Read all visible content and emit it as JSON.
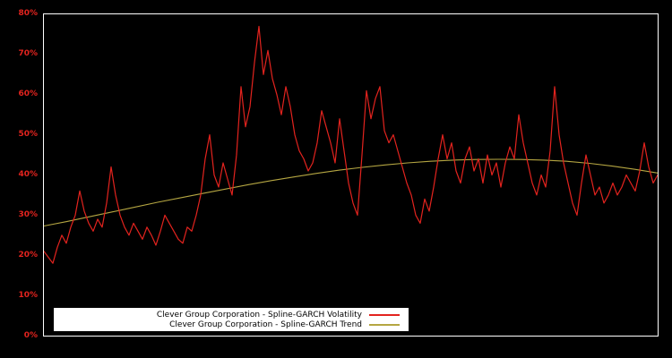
{
  "figure": {
    "background": "#000000",
    "frame_color": "#ffffff"
  },
  "axis": {
    "label_color": "#e3231e"
  },
  "chart_data": {
    "type": "line",
    "title": "",
    "xlabel": "",
    "ylabel": "",
    "ylim": [
      0,
      80
    ],
    "ytick_labels": [
      "0%",
      "10%",
      "20%",
      "30%",
      "40%",
      "50%",
      "60%",
      "70%",
      "80%"
    ],
    "xtick_labels": [],
    "grid": false,
    "legend_position": "bottom-center",
    "plot_background": "#000000",
    "series": [
      {
        "name": "Clever Group Corporation - Spline-GARCH Volatility",
        "color": "#e3231e",
        "values": [
          21,
          19.5,
          18,
          22,
          25,
          23,
          27,
          30,
          36,
          31,
          28,
          26,
          29,
          27,
          33,
          42,
          35,
          30,
          27,
          25,
          28,
          26,
          24,
          27,
          25,
          22.5,
          26,
          30,
          28,
          26,
          24,
          23,
          27,
          26,
          30,
          35,
          44,
          50,
          40,
          37,
          43,
          39,
          35,
          45,
          62,
          52,
          57,
          68,
          77,
          65,
          71,
          64,
          60,
          55,
          62,
          57,
          50,
          46,
          44,
          41,
          43,
          48,
          56,
          52,
          48,
          43,
          54,
          46,
          38,
          33,
          30,
          45,
          61,
          54,
          59,
          62,
          51,
          48,
          50,
          46,
          42,
          38,
          35,
          30,
          28,
          34,
          31,
          37,
          44,
          50,
          44,
          48,
          41,
          38,
          44,
          47,
          41,
          44,
          38,
          45,
          40,
          43,
          37,
          43,
          47,
          44,
          55,
          48,
          43,
          38,
          35,
          40,
          37,
          46,
          62,
          50,
          43,
          38,
          33,
          30,
          38,
          45,
          40,
          35,
          37,
          33,
          35,
          38,
          35,
          37,
          40,
          38,
          36,
          41,
          48,
          42,
          38,
          40
        ]
      },
      {
        "name": "Clever Group Corporation - Spline-GARCH Trend",
        "color": "#b5a642",
        "values": [
          27.3,
          28.4,
          29.6,
          30.8,
          32.0,
          33.2,
          34.3,
          35.4,
          36.5,
          37.6,
          38.6,
          39.5,
          40.4,
          41.2,
          41.9,
          42.5,
          43.0,
          43.4,
          43.7,
          43.85,
          43.9,
          43.85,
          43.7,
          43.4,
          42.9,
          42.2,
          41.4,
          40.5
        ]
      }
    ]
  }
}
